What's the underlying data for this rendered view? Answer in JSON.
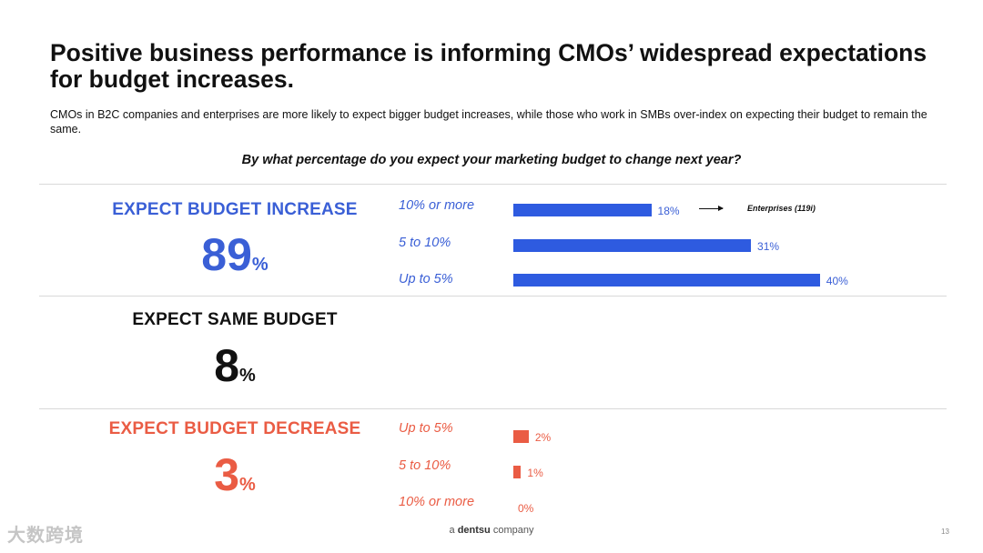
{
  "header": {
    "title": "Positive business performance is informing CMOs’ widespread expectations for budget increases.",
    "subtitle": "CMOs in B2C companies and enterprises are more likely to expect bigger budget increases, while those who work in SMBs over-index on expecting their budget to remain the same.",
    "question": "By what percentage do you expect your marketing budget to change next year?"
  },
  "summary": {
    "increase": {
      "label": "EXPECT BUDGET INCREASE",
      "value": "89",
      "unit": "%"
    },
    "same": {
      "label": "EXPECT SAME BUDGET",
      "value": "8",
      "unit": "%"
    },
    "decrease": {
      "label": "EXPECT BUDGET DECREASE",
      "value": "3",
      "unit": "%"
    }
  },
  "chart_data": [
    {
      "type": "bar",
      "orientation": "horizontal",
      "group": "EXPECT BUDGET INCREASE",
      "categories": [
        "10% or more",
        "5 to 10%",
        "Up to 5%"
      ],
      "values": [
        18,
        31,
        40
      ],
      "value_labels": [
        "18%",
        "31%",
        "40%"
      ],
      "unit": "%",
      "color": "#2e5be0",
      "annotation": {
        "category": "10% or more",
        "text": "Enterprises (119i)"
      }
    },
    {
      "type": "bar",
      "orientation": "horizontal",
      "group": "EXPECT BUDGET DECREASE",
      "categories": [
        "Up to 5%",
        "5 to 10%",
        "10% or more"
      ],
      "values": [
        2,
        1,
        0
      ],
      "value_labels": [
        "2%",
        "1%",
        "0%"
      ],
      "unit": "%",
      "color": "#ea5c44"
    }
  ],
  "footer": {
    "prefix": "a",
    "brand": "dentsu",
    "suffix": "company",
    "page_number": "13"
  },
  "watermark": "大数跨境",
  "colors": {
    "increase": "#3a5fd6",
    "decrease": "#ea5c44",
    "same": "#111111"
  }
}
